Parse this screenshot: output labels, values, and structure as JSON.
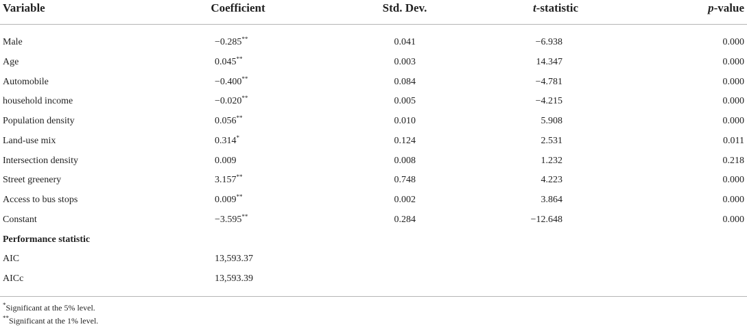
{
  "table": {
    "header": [
      "Variable",
      "Coefficient",
      "Std. Dev.",
      {
        "italic": "t",
        "text": "-statistic"
      },
      {
        "italic": "p",
        "text": "-value"
      }
    ],
    "rows": [
      [
        "Male",
        {
          "value": "−0.285",
          "sig": "**"
        },
        "0.041",
        "−6.938",
        "0.000"
      ],
      [
        "Age",
        {
          "value": "0.045",
          "sig": "**"
        },
        "0.003",
        "14.347",
        "0.000"
      ],
      [
        "Automobile",
        {
          "value": "−0.400",
          "sig": "**"
        },
        "0.084",
        "−4.781",
        "0.000"
      ],
      [
        "household income",
        {
          "value": "−0.020",
          "sig": "**"
        },
        "0.005",
        "−4.215",
        "0.000"
      ],
      [
        "Population density",
        {
          "value": "0.056",
          "sig": "**"
        },
        "0.010",
        "5.908",
        "0.000"
      ],
      [
        "Land-use mix",
        {
          "value": "0.314",
          "sig": "*"
        },
        "0.124",
        "2.531",
        "0.011"
      ],
      [
        "Intersection density",
        {
          "value": "0.009"
        },
        "0.008",
        "1.232",
        "0.218"
      ],
      [
        "Street greenery",
        {
          "value": "3.157",
          "sig": "**"
        },
        "0.748",
        "4.223",
        "0.000"
      ],
      [
        "Access to bus stops",
        {
          "value": "0.009",
          "sig": "**"
        },
        "0.002",
        "3.864",
        "0.000"
      ],
      [
        "Constant",
        {
          "value": "−3.595",
          "sig": "**"
        },
        "0.284",
        "−12.648",
        "0.000"
      ]
    ],
    "section": "Performance statistic",
    "stats": [
      [
        "AIC",
        "13,593.37"
      ],
      [
        "AICc",
        "13,593.39"
      ]
    ],
    "footnotes": [
      {
        "mark": "*",
        "text": "Significant at the 5% level."
      },
      {
        "mark": "**",
        "text": "Significant at the 1% level."
      }
    ]
  }
}
